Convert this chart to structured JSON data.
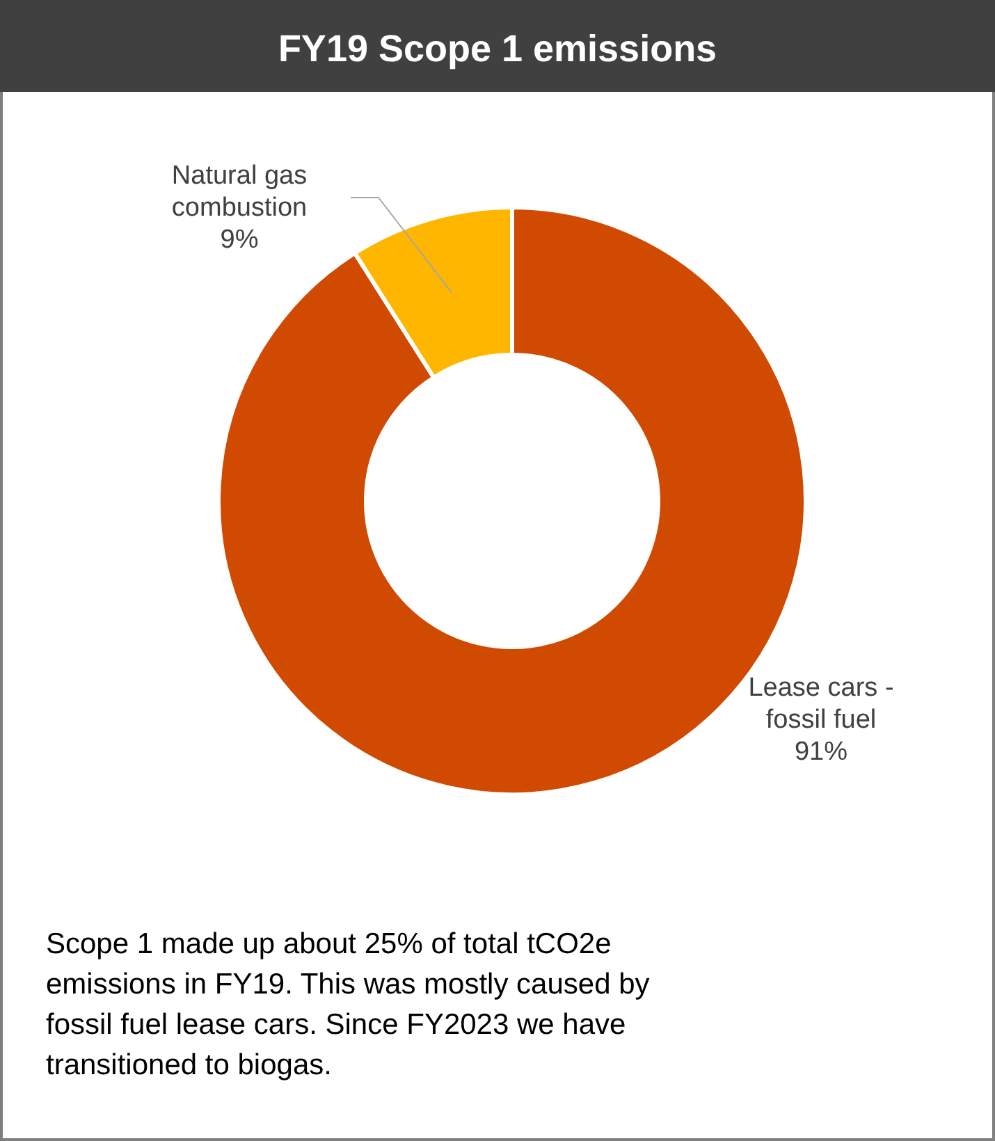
{
  "chart_data": {
    "type": "donut",
    "title": "FY19 Scope 1 emissions",
    "categories": [
      "Lease cars - fossil fuel",
      "Natural gas combustion"
    ],
    "values": [
      91,
      9
    ],
    "value_labels": [
      "91%",
      "9%"
    ],
    "colors": [
      "#d04a02",
      "#ffb600"
    ],
    "annotations": [
      "Scope 1 made up about 25% of total tCO2e emissions in FY19. This was mostly caused by fossil fuel lease cars.  Since FY2023 we have transitioned to biogas."
    ]
  }
}
